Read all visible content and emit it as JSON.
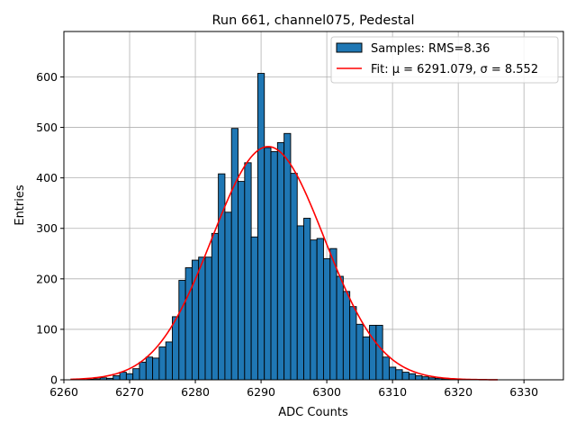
{
  "chart_data": {
    "type": "bar",
    "title": "Run 661, channel075, Pedestal",
    "xlabel": "ADC Counts",
    "ylabel": "Entries",
    "xlim": [
      6260,
      6336
    ],
    "ylim": [
      0,
      690
    ],
    "xticks": [
      6260,
      6270,
      6280,
      6290,
      6300,
      6310,
      6320,
      6330
    ],
    "yticks": [
      0,
      100,
      200,
      300,
      400,
      500,
      600
    ],
    "grid": true,
    "legend_placement": "top-right",
    "legend": [
      {
        "label": "Samples: RMS=8.36",
        "kind": "patch",
        "color": "#1f77b4"
      },
      {
        "label": "Fit: μ = 6291.079, σ = 8.552",
        "kind": "line",
        "color": "#ff0000"
      }
    ],
    "histogram": {
      "bin_width": 1,
      "bin_centers": [
        6264,
        6265,
        6266,
        6267,
        6268,
        6269,
        6270,
        6271,
        6272,
        6273,
        6274,
        6275,
        6276,
        6277,
        6278,
        6279,
        6280,
        6281,
        6282,
        6283,
        6284,
        6285,
        6286,
        6287,
        6288,
        6289,
        6290,
        6291,
        6292,
        6293,
        6294,
        6295,
        6296,
        6297,
        6298,
        6299,
        6300,
        6301,
        6302,
        6303,
        6304,
        6305,
        6306,
        6307,
        6308,
        6309,
        6310,
        6311,
        6312,
        6313,
        6314,
        6315,
        6316,
        6317,
        6318,
        6319,
        6320,
        6321
      ],
      "counts": [
        1,
        2,
        4,
        3,
        8,
        15,
        12,
        22,
        35,
        45,
        43,
        65,
        75,
        125,
        197,
        222,
        237,
        243,
        243,
        290,
        408,
        332,
        498,
        393,
        430,
        283,
        607,
        460,
        452,
        470,
        488,
        409,
        305,
        320,
        277,
        280,
        240,
        260,
        205,
        175,
        145,
        110,
        85,
        108,
        108,
        45,
        25,
        20,
        15,
        12,
        8,
        6,
        4,
        3,
        2,
        2,
        1,
        1
      ],
      "color": "#1f77b4",
      "edgecolor": "#000000"
    },
    "fit": {
      "mu": 6291.079,
      "sigma": 8.552,
      "amplitude": 462,
      "x_range": [
        6261,
        6326
      ],
      "color": "#ff0000"
    }
  }
}
